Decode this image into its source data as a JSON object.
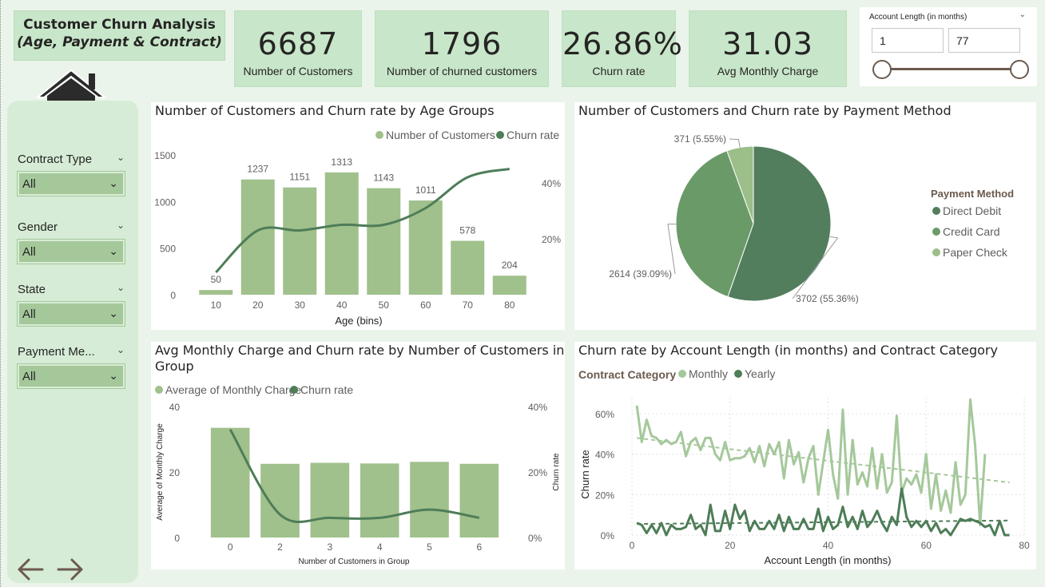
{
  "header": {
    "title_line1": "Customer Churn Analysis",
    "title_line2": "(Age, Payment & Contract)"
  },
  "kpis": [
    {
      "value": "6687",
      "label": "Number of Customers"
    },
    {
      "value": "1796",
      "label": "Number of churned customers"
    },
    {
      "value": "26.86%",
      "label": "Churn rate"
    },
    {
      "value": "31.03",
      "label": "Avg Monthly Charge"
    }
  ],
  "account_slicer": {
    "label": "Account Length (in months)",
    "min": "1",
    "max": "77"
  },
  "filters": [
    {
      "label": "Contract Type",
      "value": "All"
    },
    {
      "label": "Gender",
      "value": "All"
    },
    {
      "label": "State",
      "value": "All"
    },
    {
      "label": "Payment Me...",
      "value": "All"
    }
  ],
  "icons": [
    "home-icon",
    "arrow-left-icon",
    "arrow-right-icon",
    "chevron-down-icon"
  ],
  "colors": {
    "bar_light": "#a0c08c",
    "line_dark": "#4e7d58",
    "accent_mid": "#6a9a68",
    "kpi_bg": "#c8e6c9"
  },
  "chart_data": [
    {
      "type": "bar",
      "title": "Number of Customers and Churn rate by Age Groups",
      "xlabel": "Age (bins)",
      "legend": [
        "Number of Customers",
        "Churn rate"
      ],
      "categories": [
        "10",
        "20",
        "30",
        "40",
        "50",
        "60",
        "70",
        "80"
      ],
      "series": [
        {
          "name": "Number of Customers",
          "values": [
            50,
            1237,
            1151,
            1313,
            1143,
            1011,
            578,
            204
          ]
        },
        {
          "name": "Churn rate",
          "values": [
            8,
            23,
            23,
            25,
            25,
            31,
            42,
            45
          ]
        }
      ],
      "ylim": [
        0,
        1500
      ],
      "y_ticks": [
        "0",
        "500",
        "1000",
        "1500"
      ],
      "y2_ticks": [
        "20%",
        "40%"
      ],
      "data_labels": [
        "50",
        "1237",
        "1151",
        "1313",
        "1143",
        "1011",
        "578",
        "204"
      ]
    },
    {
      "type": "pie",
      "title": "Number of Customers and Churn rate by Payment Method",
      "legend_title": "Payment Method",
      "categories": [
        "Direct Debit",
        "Credit Card",
        "Paper Check"
      ],
      "values": [
        3702,
        2614,
        371
      ],
      "data_labels": [
        "3702 (55.36%)",
        "2614 (39.09%)",
        "371 (5.55%)"
      ]
    },
    {
      "type": "bar",
      "title_line1": "Avg Monthly Charge and Churn rate by Number of Customers in",
      "title_line2": "Group",
      "xlabel": "Number of Customers in Group",
      "ylabel": "Average of Monthly Charge",
      "y2label": "Churn rate",
      "legend": [
        "Average of Monthly Charge",
        "Churn rate"
      ],
      "categories": [
        "0",
        "2",
        "3",
        "4",
        "5",
        "6"
      ],
      "series": [
        {
          "name": "Average of Monthly Charge",
          "values": [
            33.5,
            22.5,
            22.8,
            22.6,
            23.1,
            22.5
          ]
        },
        {
          "name": "Churn rate",
          "values": [
            33,
            7,
            6,
            6,
            8.5,
            6
          ]
        }
      ],
      "ylim": [
        0,
        40
      ],
      "y_ticks": [
        "0",
        "20",
        "40"
      ],
      "y2_ticks": [
        "0%",
        "20%",
        "40%"
      ]
    },
    {
      "type": "line",
      "title": "Churn rate by Account Length (in months) and Contract Category",
      "legend_title": "Contract Category",
      "legend": [
        "Monthly",
        "Yearly"
      ],
      "xlabel": "Account Length (in months)",
      "ylabel": "Churn rate",
      "x_ticks": [
        "0",
        "20",
        "40",
        "60",
        "80"
      ],
      "y_ticks": [
        "0%",
        "20%",
        "40%",
        "60%"
      ],
      "xlim": [
        0,
        80
      ],
      "ylim": [
        0,
        0.66
      ],
      "series": [
        {
          "name": "Monthly",
          "x": [
            1,
            2,
            3,
            4,
            5,
            6,
            7,
            8,
            9,
            10,
            11,
            12,
            13,
            14,
            15,
            16,
            17,
            18,
            19,
            20,
            21,
            22,
            23,
            24,
            25,
            26,
            27,
            28,
            29,
            30,
            31,
            32,
            33,
            34,
            35,
            36,
            37,
            38,
            39,
            40,
            41,
            42,
            43,
            44,
            45,
            46,
            47,
            48,
            49,
            50,
            51,
            52,
            53,
            54,
            55,
            56,
            57,
            58,
            59,
            60,
            61,
            62,
            63,
            64,
            65,
            66,
            67,
            68,
            69,
            70,
            71,
            72
          ],
          "y": [
            0.64,
            0.46,
            0.57,
            0.49,
            0.48,
            0.45,
            0.47,
            0.45,
            0.46,
            0.51,
            0.39,
            0.46,
            0.48,
            0.42,
            0.48,
            0.48,
            0.4,
            0.37,
            0.46,
            0.37,
            0.38,
            0.38,
            0.39,
            0.43,
            0.36,
            0.44,
            0.34,
            0.45,
            0.4,
            0.46,
            0.28,
            0.47,
            0.35,
            0.41,
            0.26,
            0.38,
            0.44,
            0.2,
            0.36,
            0.52,
            0.3,
            0.18,
            0.62,
            0.2,
            0.47,
            0.25,
            0.31,
            0.24,
            0.43,
            0.23,
            0.4,
            0.21,
            0.26,
            0.59,
            0.21,
            0.28,
            0.25,
            0.3,
            0.21,
            0.4,
            0.13,
            0.3,
            0.12,
            0.22,
            0.11,
            0.36,
            0.15,
            0.2,
            0.67,
            0.44,
            0.05,
            0.4
          ]
        },
        {
          "name": "Yearly",
          "x": [
            1,
            2,
            3,
            4,
            5,
            6,
            7,
            8,
            9,
            10,
            11,
            12,
            13,
            14,
            15,
            16,
            17,
            18,
            19,
            20,
            21,
            22,
            23,
            24,
            25,
            26,
            27,
            28,
            29,
            30,
            31,
            32,
            33,
            34,
            35,
            36,
            37,
            38,
            39,
            40,
            41,
            42,
            43,
            44,
            45,
            46,
            47,
            48,
            49,
            50,
            51,
            52,
            53,
            54,
            55,
            56,
            57,
            58,
            59,
            60,
            61,
            62,
            63,
            64,
            65,
            66,
            67,
            68,
            69,
            70,
            71,
            72,
            73,
            74,
            75,
            76,
            77
          ],
          "y": [
            0.06,
            0.05,
            0.01,
            0.05,
            0.01,
            0.06,
            0.0,
            0.05,
            0.03,
            0.03,
            0.04,
            0.1,
            0.03,
            0.05,
            0.0,
            0.15,
            0.02,
            0.02,
            0.12,
            0.03,
            0.15,
            0.08,
            0.12,
            0.02,
            0.07,
            0.03,
            0.03,
            0.07,
            0.03,
            0.1,
            0.02,
            0.09,
            0.03,
            0.03,
            0.08,
            0.03,
            0.03,
            0.13,
            0.02,
            0.09,
            0.03,
            0.05,
            0.14,
            0.04,
            0.09,
            0.03,
            0.12,
            0.04,
            0.07,
            0.12,
            0.06,
            0.02,
            0.09,
            0.05,
            0.23,
            0.09,
            0.04,
            0.07,
            0.04,
            0.07,
            0.02,
            0.06,
            0.01,
            0.03,
            0.0,
            0.04,
            0.08,
            0.07,
            0.08,
            0.07,
            0.06,
            0.04,
            0.05,
            0.0,
            0.07,
            0.0,
            0.0
          ]
        }
      ],
      "trend": [
        {
          "name": "Monthly",
          "x": [
            1,
            77
          ],
          "y": [
            0.48,
            0.26
          ]
        },
        {
          "name": "Yearly",
          "x": [
            1,
            77
          ],
          "y": [
            0.055,
            0.072
          ]
        }
      ]
    }
  ]
}
